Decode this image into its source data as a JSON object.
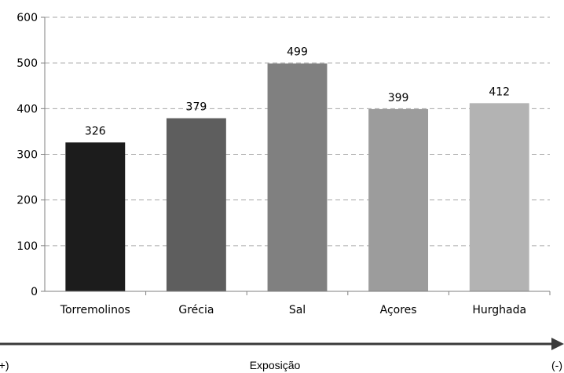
{
  "chart_data": {
    "type": "bar",
    "categories": [
      "Torremolinos",
      "Grécia",
      "Sal",
      "Açores",
      "Hurghada"
    ],
    "values": [
      326,
      379,
      499,
      399,
      412
    ],
    "colors": [
      "#1c1c1c",
      "#5e5e5e",
      "#808080",
      "#9c9c9c",
      "#b3b3b3"
    ],
    "ylim": [
      0,
      600
    ],
    "yticks": [
      0,
      100,
      200,
      300,
      400,
      500,
      600
    ],
    "grid": true,
    "data_labels": true
  },
  "exposure_axis": {
    "label": "Exposição",
    "left_label": "(+)",
    "right_label": "(-)"
  }
}
